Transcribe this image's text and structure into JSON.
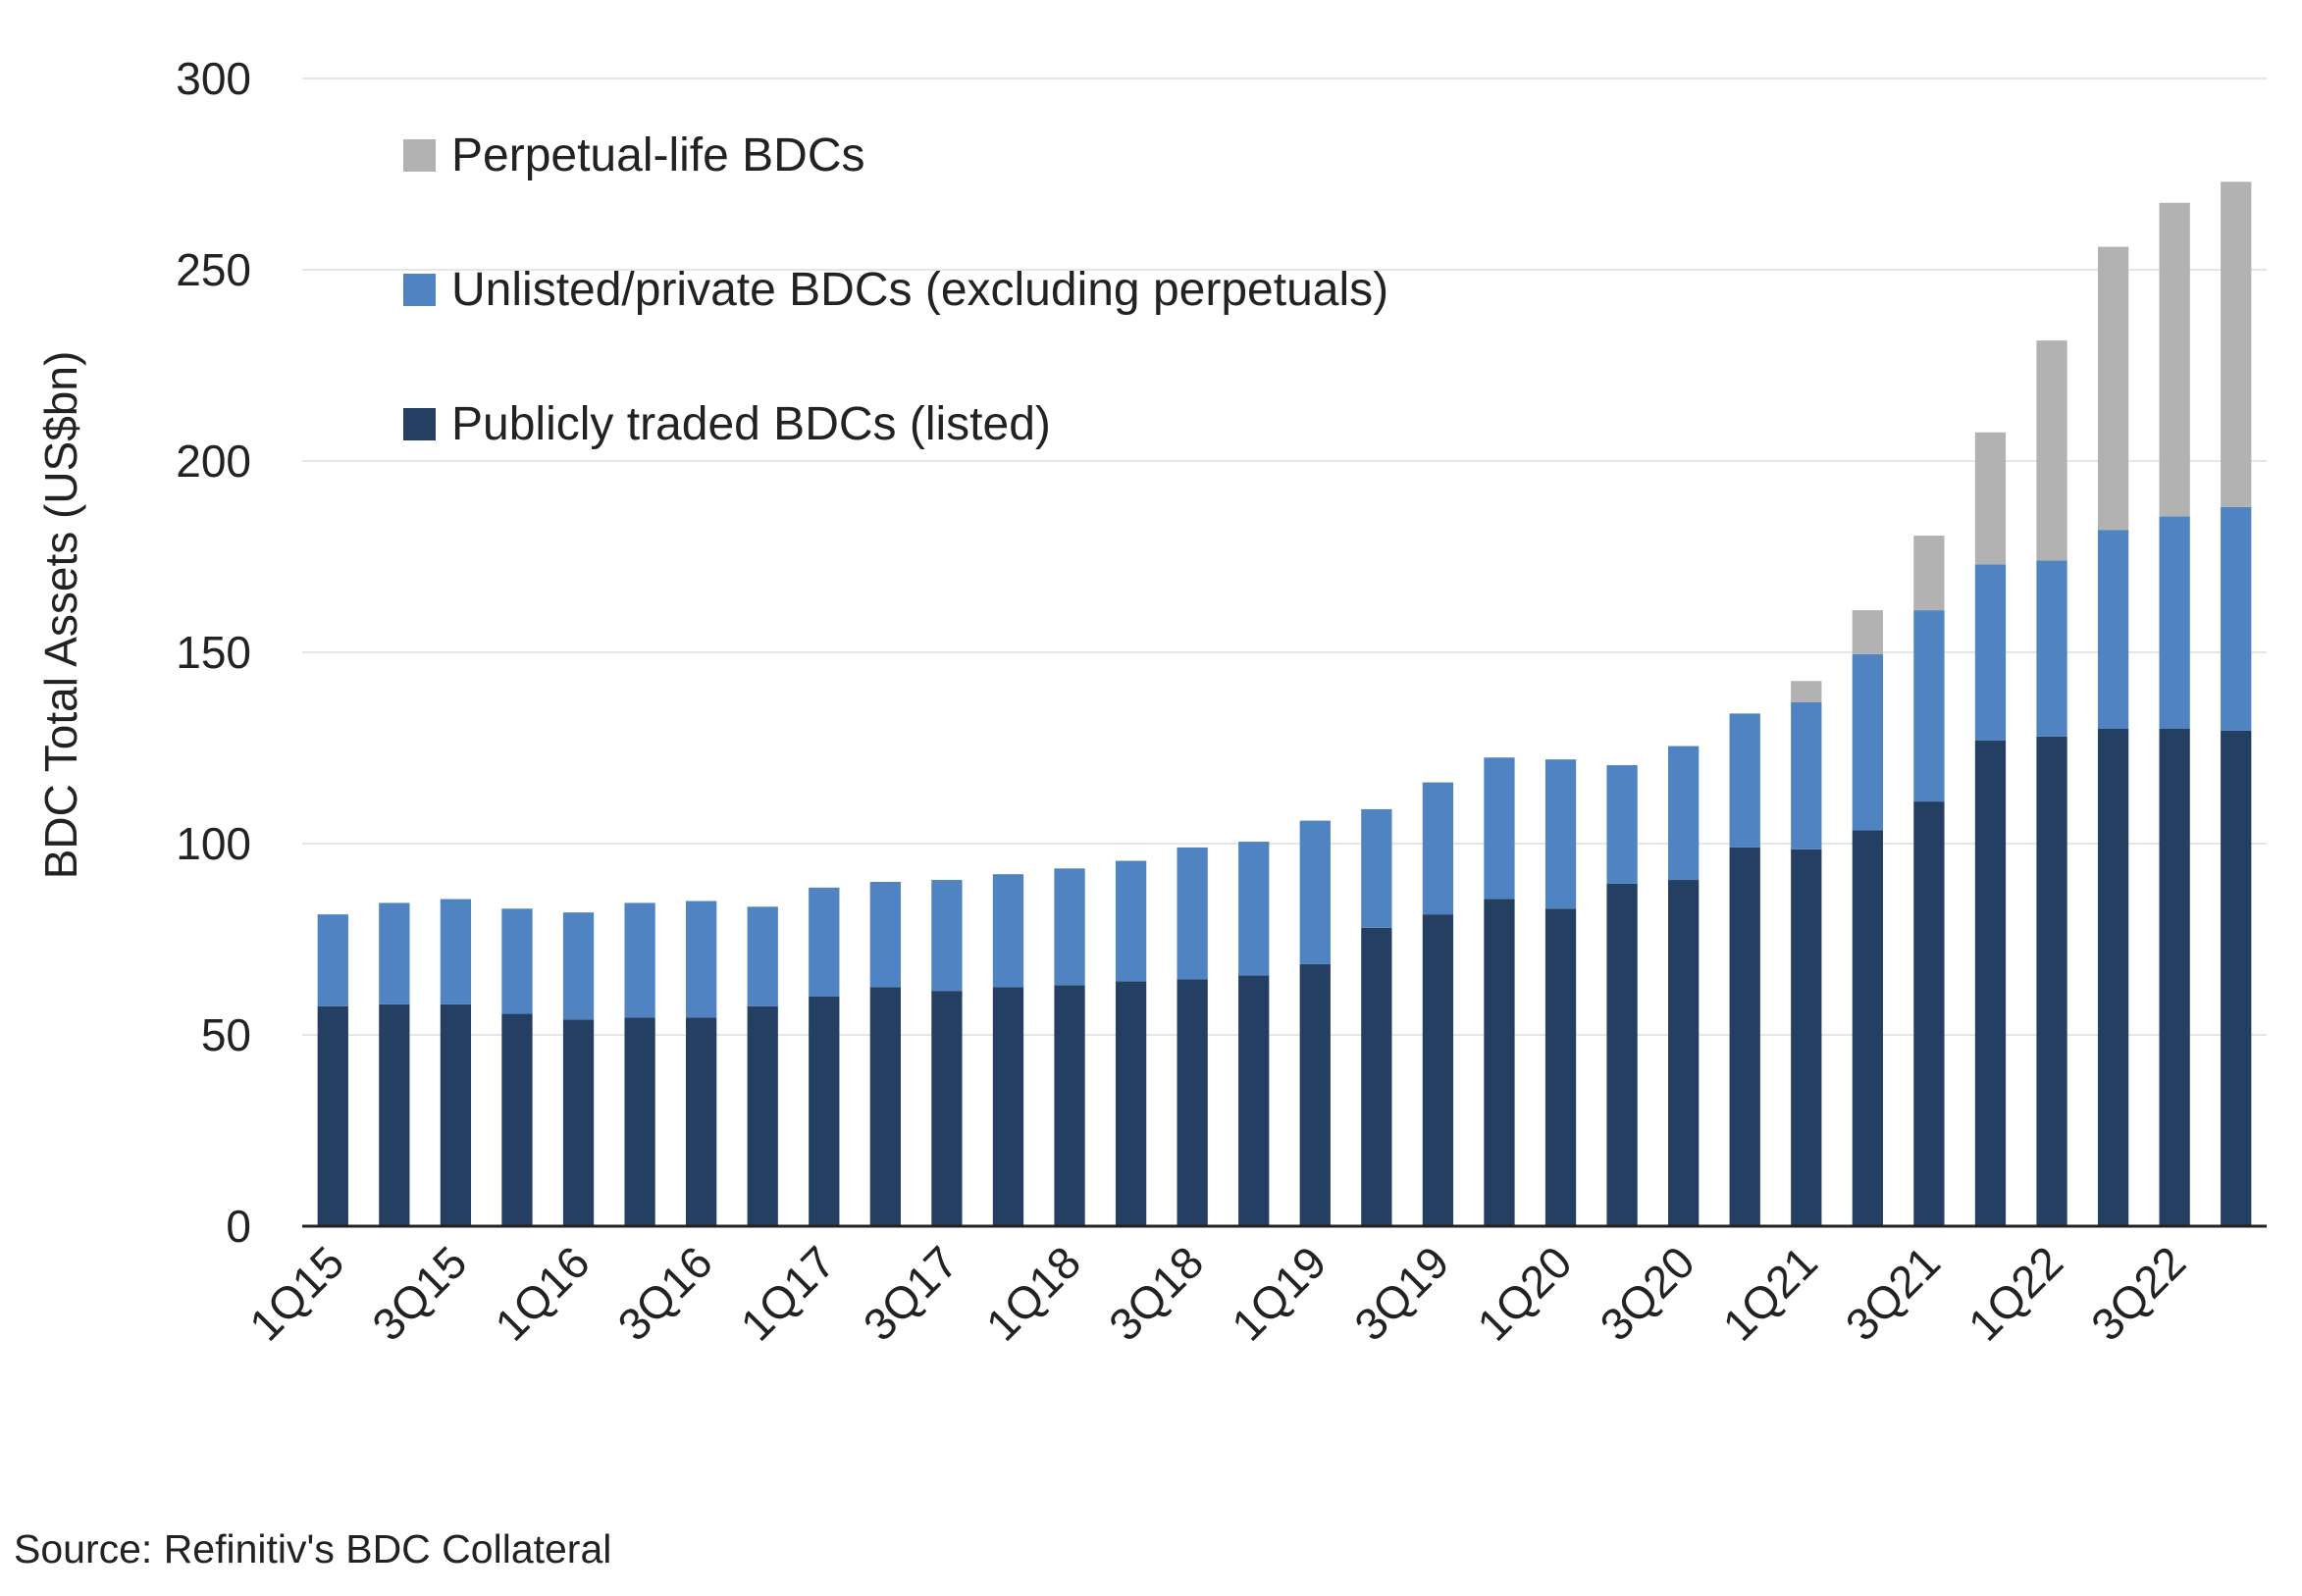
{
  "chart_data": {
    "type": "bar",
    "stacked": true,
    "ylabel": "BDC Total Assets (US$bn)",
    "ylim": [
      0,
      300
    ],
    "yticks": [
      0,
      50,
      100,
      150,
      200,
      250,
      300
    ],
    "grid": true,
    "legend_position": "top-left",
    "categories": [
      "1Q15",
      "2Q15",
      "3Q15",
      "4Q15",
      "1Q16",
      "2Q16",
      "3Q16",
      "4Q16",
      "1Q17",
      "2Q17",
      "3Q17",
      "4Q17",
      "1Q18",
      "2Q18",
      "3Q18",
      "4Q18",
      "1Q19",
      "2Q19",
      "3Q19",
      "4Q19",
      "1Q20",
      "2Q20",
      "3Q20",
      "4Q20",
      "1Q21",
      "2Q21",
      "3Q21",
      "4Q21",
      "1Q22",
      "2Q22",
      "3Q22",
      "4Q22"
    ],
    "x_tick_labels": [
      "1Q15",
      "3Q15",
      "1Q16",
      "3Q16",
      "1Q17",
      "3Q17",
      "1Q18",
      "3Q18",
      "1Q19",
      "3Q19",
      "1Q20",
      "3Q20",
      "1Q21",
      "3Q21",
      "1Q22",
      "3Q22"
    ],
    "series": [
      {
        "name": "Publicly traded BDCs (listed)",
        "color": "#253f62",
        "values": [
          57.5,
          58,
          58,
          55.5,
          54,
          54.5,
          54.5,
          57.5,
          60,
          62.5,
          61.5,
          62.5,
          63,
          64,
          64.5,
          65.5,
          68.5,
          78,
          81.5,
          85.5,
          83,
          89.5,
          90.5,
          99,
          98.5,
          103.5,
          111,
          127,
          128,
          130,
          130,
          129.5
        ]
      },
      {
        "name": "Unlisted/private BDCs (excluding perpetuals)",
        "color": "#5083c1",
        "values": [
          24,
          26.5,
          27.5,
          27.5,
          28,
          30,
          30.5,
          26,
          28.5,
          27.5,
          29,
          29.5,
          30.5,
          31.5,
          34.5,
          35,
          37.5,
          31,
          34.5,
          37,
          39,
          31,
          35,
          35,
          38.5,
          46,
          50,
          46,
          46,
          52,
          55.5,
          58.5
        ]
      },
      {
        "name": "Perpetual-life BDCs",
        "color": "#b2b2b2",
        "values": [
          0,
          0,
          0,
          0,
          0,
          0,
          0,
          0,
          0,
          0,
          0,
          0,
          0,
          0,
          0,
          0,
          0,
          0,
          0,
          0,
          0,
          0,
          0,
          0,
          5.5,
          11.5,
          19.5,
          34.5,
          57.5,
          74,
          82,
          85
        ]
      }
    ]
  },
  "source_note": "Source: Refinitiv's BDC Collateral"
}
